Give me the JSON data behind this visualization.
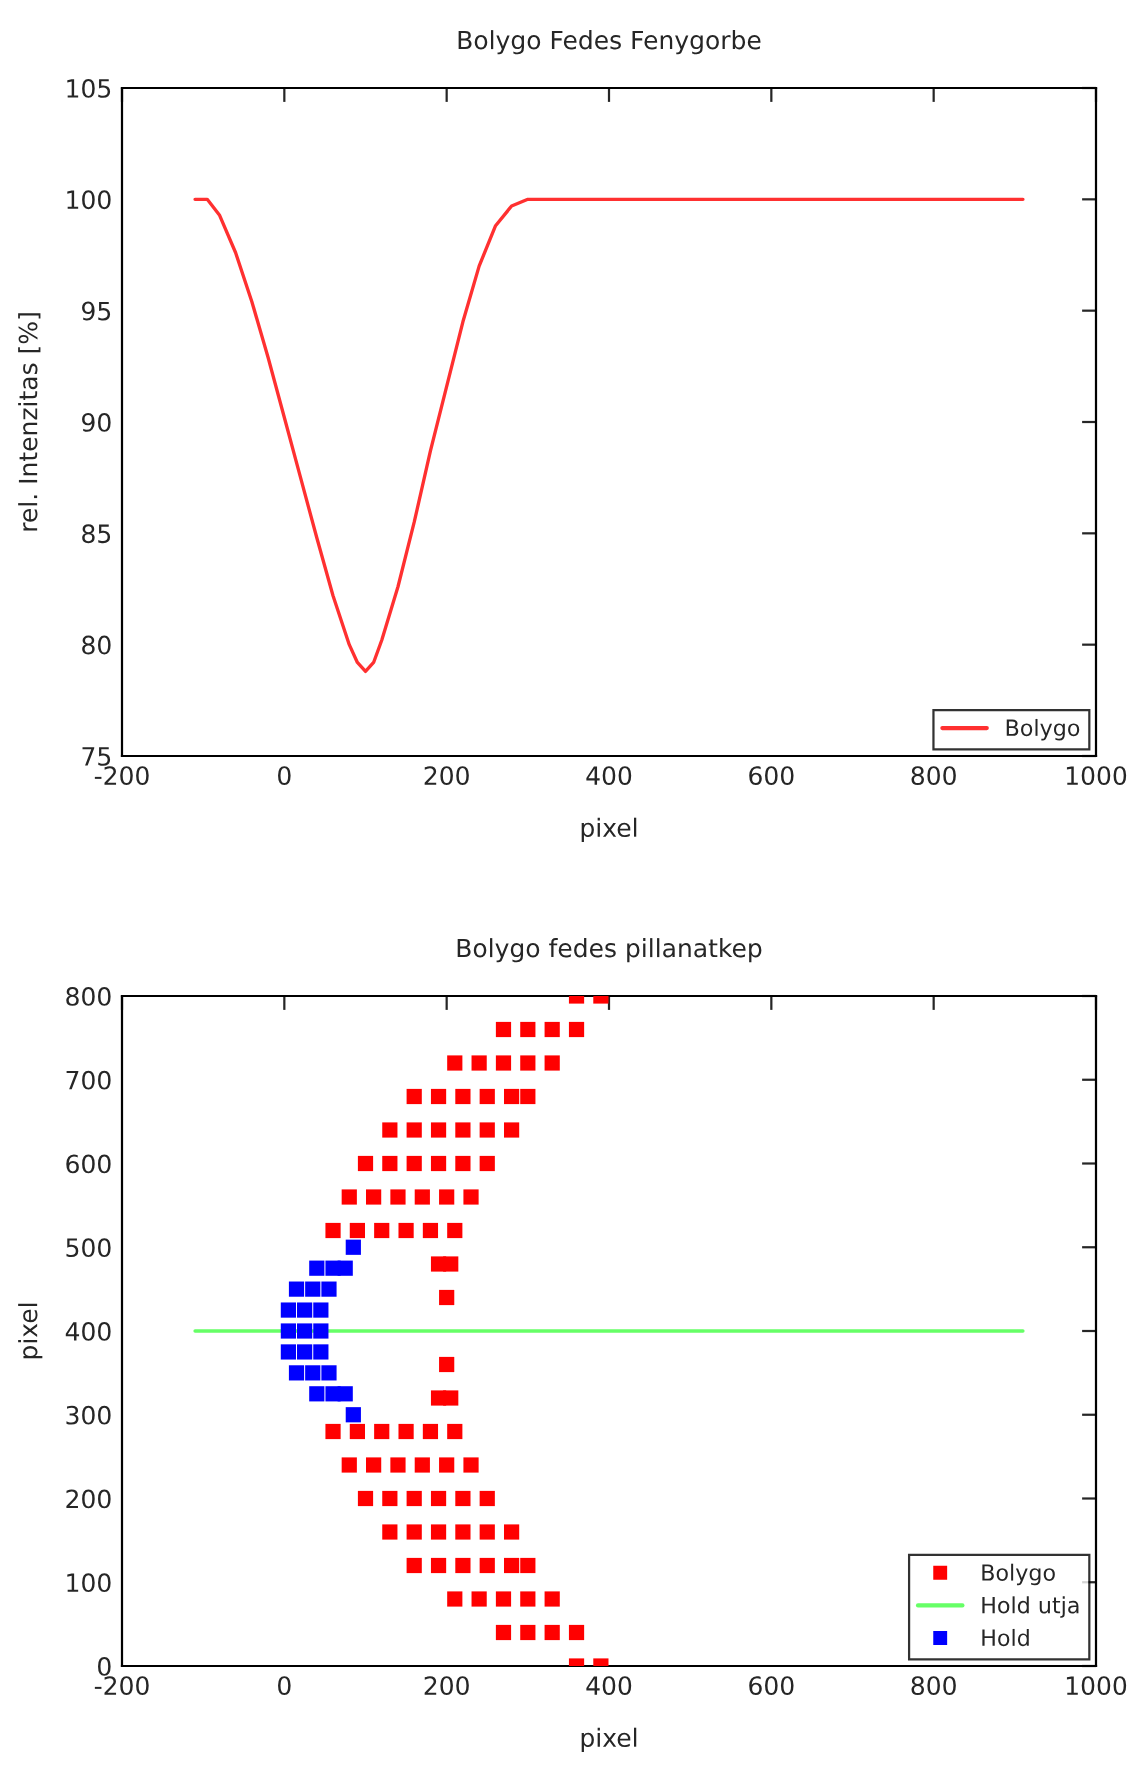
{
  "chart_data": [
    {
      "type": "line",
      "title": "Bolygo Fedes Fenygorbe",
      "xlabel": "pixel",
      "ylabel": "rel. Intenzitas [%]",
      "xlim": [
        -200,
        1000
      ],
      "xticks": [
        -200,
        0,
        200,
        400,
        600,
        800,
        1000
      ],
      "ylim": [
        75,
        105
      ],
      "yticks": [
        75,
        80,
        85,
        90,
        95,
        100,
        105
      ],
      "grid": false,
      "legend": "bottom right",
      "series": [
        {
          "name": "Bolygo",
          "color": "#ff3030",
          "x": [
            -110,
            -95,
            -80,
            -60,
            -40,
            -20,
            0,
            20,
            40,
            60,
            80,
            90,
            100,
            110,
            120,
            140,
            160,
            180,
            200,
            220,
            240,
            260,
            280,
            300,
            910
          ],
          "values": [
            100,
            100,
            99.3,
            97.6,
            95.4,
            92.9,
            90.2,
            87.5,
            84.8,
            82.2,
            80,
            79.2,
            78.8,
            79.2,
            80.2,
            82.6,
            85.5,
            88.7,
            91.6,
            94.5,
            97,
            98.8,
            99.7,
            100,
            100
          ]
        }
      ]
    },
    {
      "type": "scatter",
      "title": "Bolygo fedes pillanatkep",
      "xlabel": "pixel",
      "ylabel": "pixel",
      "xlim": [
        -200,
        1000
      ],
      "xticks": [
        -200,
        0,
        200,
        400,
        600,
        800,
        1000
      ],
      "ylim": [
        0,
        800
      ],
      "yticks": [
        0,
        100,
        200,
        300,
        400,
        500,
        600,
        700,
        800
      ],
      "grid": false,
      "legend": "bottom right",
      "series": [
        {
          "name": "Bolygo",
          "color": "#ff0000",
          "marker": "square",
          "x": [
            360,
            390,
            270,
            300,
            330,
            360,
            210,
            240,
            270,
            300,
            330,
            160,
            190,
            220,
            250,
            280,
            300,
            130,
            160,
            190,
            220,
            250,
            280,
            100,
            130,
            160,
            190,
            220,
            250,
            80,
            110,
            140,
            170,
            200,
            230,
            60,
            90,
            120,
            150,
            180,
            210,
            190,
            205,
            200,
            200,
            190,
            205,
            60,
            90,
            120,
            150,
            180,
            210,
            80,
            110,
            140,
            170,
            200,
            230,
            100,
            130,
            160,
            190,
            220,
            250,
            130,
            160,
            190,
            220,
            250,
            280,
            160,
            190,
            220,
            250,
            280,
            300,
            210,
            240,
            270,
            300,
            330,
            270,
            300,
            330,
            360,
            360,
            390
          ],
          "values": [
            800,
            800,
            760,
            760,
            760,
            760,
            720,
            720,
            720,
            720,
            720,
            680,
            680,
            680,
            680,
            680,
            680,
            640,
            640,
            640,
            640,
            640,
            640,
            600,
            600,
            600,
            600,
            600,
            600,
            560,
            560,
            560,
            560,
            560,
            560,
            520,
            520,
            520,
            520,
            520,
            520,
            480,
            480,
            440,
            360,
            320,
            320,
            280,
            280,
            280,
            280,
            280,
            280,
            240,
            240,
            240,
            240,
            240,
            240,
            200,
            200,
            200,
            200,
            200,
            200,
            160,
            160,
            160,
            160,
            160,
            160,
            120,
            120,
            120,
            120,
            120,
            120,
            80,
            80,
            80,
            80,
            80,
            40,
            40,
            40,
            40,
            0,
            0
          ]
        },
        {
          "name": "Hold utja",
          "type": "line",
          "color": "#66ff66",
          "x": [
            -110,
            910
          ],
          "values": [
            400,
            400
          ]
        },
        {
          "name": "Hold",
          "color": "#0000ff",
          "marker": "square",
          "x": [
            85,
            40,
            60,
            75,
            15,
            35,
            55,
            5,
            25,
            45,
            5,
            25,
            45,
            5,
            25,
            45,
            15,
            35,
            55,
            40,
            60,
            75,
            85
          ],
          "values": [
            500,
            475,
            475,
            475,
            450,
            450,
            450,
            425,
            425,
            425,
            400,
            400,
            400,
            375,
            375,
            375,
            350,
            350,
            350,
            325,
            325,
            325,
            300
          ]
        }
      ]
    }
  ]
}
